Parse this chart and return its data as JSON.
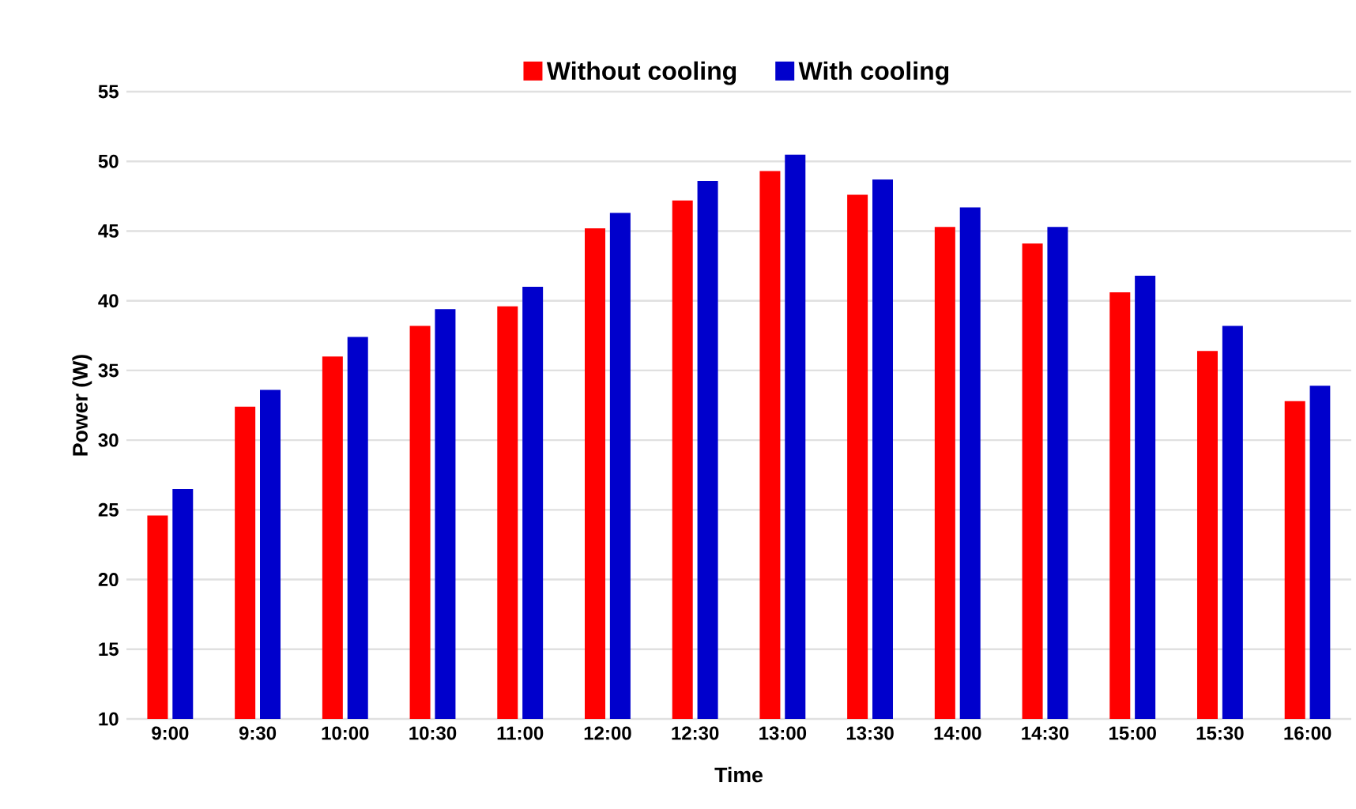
{
  "chart_data": {
    "type": "bar",
    "xlabel": "Time",
    "ylabel": "Power (W)",
    "categories": [
      "9:00",
      "9:30",
      "10:00",
      "10:30",
      "11:00",
      "12:00",
      "12:30",
      "13:00",
      "13:30",
      "14:00",
      "14:30",
      "15:00",
      "15:30",
      "16:00"
    ],
    "series": [
      {
        "name": "Without cooling",
        "color": "#ff0000",
        "values": [
          24.6,
          32.4,
          36.0,
          38.2,
          39.6,
          45.2,
          47.2,
          49.3,
          47.6,
          45.3,
          44.1,
          40.6,
          36.4,
          32.8
        ]
      },
      {
        "name": "With cooling",
        "color": "#0000cc",
        "values": [
          26.5,
          33.6,
          37.4,
          39.4,
          41.0,
          46.3,
          48.6,
          50.5,
          48.7,
          46.7,
          45.3,
          41.8,
          38.2,
          33.9
        ]
      }
    ],
    "ylim": [
      10,
      55
    ],
    "yticks": [
      10,
      15,
      20,
      25,
      30,
      35,
      40,
      45,
      50,
      55
    ],
    "grid": "y",
    "legend": "top"
  }
}
